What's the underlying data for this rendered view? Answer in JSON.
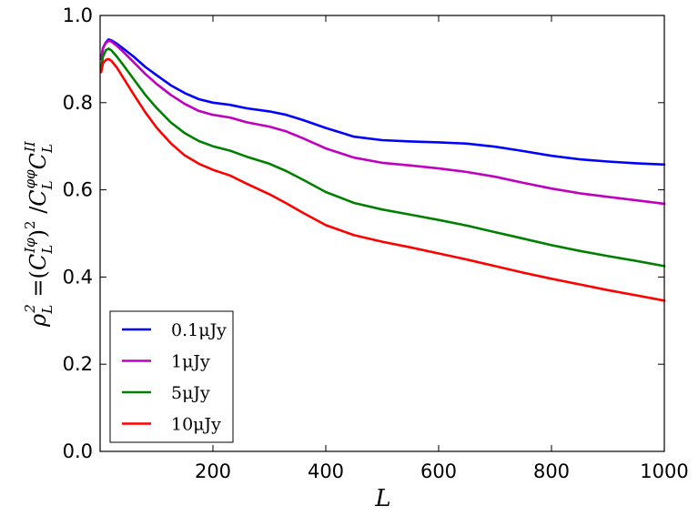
{
  "chart_data": {
    "type": "line",
    "xlabel": "L",
    "ylabel": "ρ²_L = (C_L^{Iφ})² / C_L^{φφ} C_L^{II}",
    "ylabel_parts": {
      "rho": "ρ",
      "rho_sup": "2",
      "rho_sub": "L",
      "eq": " =(",
      "c1": "C",
      "c1_sup": "Iφ",
      "c1_sub": "L",
      "close_sq": ")",
      "sq": "2",
      "slash": " /",
      "c2": "C",
      "c2_sup": "φφ",
      "c2_sub": "L",
      "c3": "C",
      "c3_sup": "II",
      "c3_sub": "L"
    },
    "xlim": [
      0,
      1000
    ],
    "ylim": [
      0.0,
      1.0
    ],
    "xticks": [
      200,
      400,
      600,
      800,
      1000
    ],
    "yticks": [
      0.0,
      0.2,
      0.4,
      0.6,
      0.8,
      1.0
    ],
    "xtick_labels": [
      "200",
      "400",
      "600",
      "800",
      "1000"
    ],
    "ytick_labels": [
      "0.0",
      "0.2",
      "0.4",
      "0.6",
      "0.8",
      "1.0"
    ],
    "grid": false,
    "legend_position": "lower-left",
    "x": [
      2,
      5,
      10,
      15,
      20,
      30,
      40,
      60,
      80,
      100,
      125,
      150,
      175,
      200,
      230,
      260,
      300,
      330,
      360,
      400,
      450,
      500,
      550,
      600,
      650,
      700,
      750,
      800,
      850,
      900,
      950,
      1000
    ],
    "series": [
      {
        "name": "0.1μJy",
        "color": "#0000ff",
        "values": [
          0.9,
          0.925,
          0.938,
          0.945,
          0.943,
          0.935,
          0.925,
          0.905,
          0.882,
          0.863,
          0.84,
          0.822,
          0.808,
          0.8,
          0.795,
          0.787,
          0.78,
          0.772,
          0.76,
          0.742,
          0.722,
          0.714,
          0.711,
          0.709,
          0.706,
          0.699,
          0.689,
          0.678,
          0.67,
          0.665,
          0.661,
          0.658
        ]
      },
      {
        "name": "1μJy",
        "color": "#bf00bf",
        "values": [
          0.9,
          0.925,
          0.937,
          0.942,
          0.94,
          0.93,
          0.918,
          0.892,
          0.866,
          0.843,
          0.818,
          0.797,
          0.781,
          0.772,
          0.766,
          0.755,
          0.745,
          0.734,
          0.718,
          0.695,
          0.674,
          0.662,
          0.656,
          0.649,
          0.641,
          0.63,
          0.616,
          0.603,
          0.592,
          0.584,
          0.576,
          0.568
        ]
      },
      {
        "name": "5μJy",
        "color": "#008000",
        "values": [
          0.88,
          0.905,
          0.92,
          0.924,
          0.92,
          0.905,
          0.888,
          0.853,
          0.818,
          0.788,
          0.755,
          0.73,
          0.712,
          0.7,
          0.69,
          0.676,
          0.66,
          0.643,
          0.623,
          0.595,
          0.57,
          0.555,
          0.543,
          0.531,
          0.518,
          0.503,
          0.488,
          0.473,
          0.46,
          0.448,
          0.437,
          0.425
        ]
      },
      {
        "name": "10μJy",
        "color": "#ff0000",
        "values": [
          0.87,
          0.89,
          0.898,
          0.9,
          0.896,
          0.88,
          0.859,
          0.818,
          0.778,
          0.743,
          0.707,
          0.679,
          0.66,
          0.646,
          0.633,
          0.614,
          0.59,
          0.569,
          0.547,
          0.519,
          0.496,
          0.481,
          0.468,
          0.454,
          0.44,
          0.425,
          0.41,
          0.396,
          0.383,
          0.37,
          0.358,
          0.346
        ]
      }
    ]
  }
}
